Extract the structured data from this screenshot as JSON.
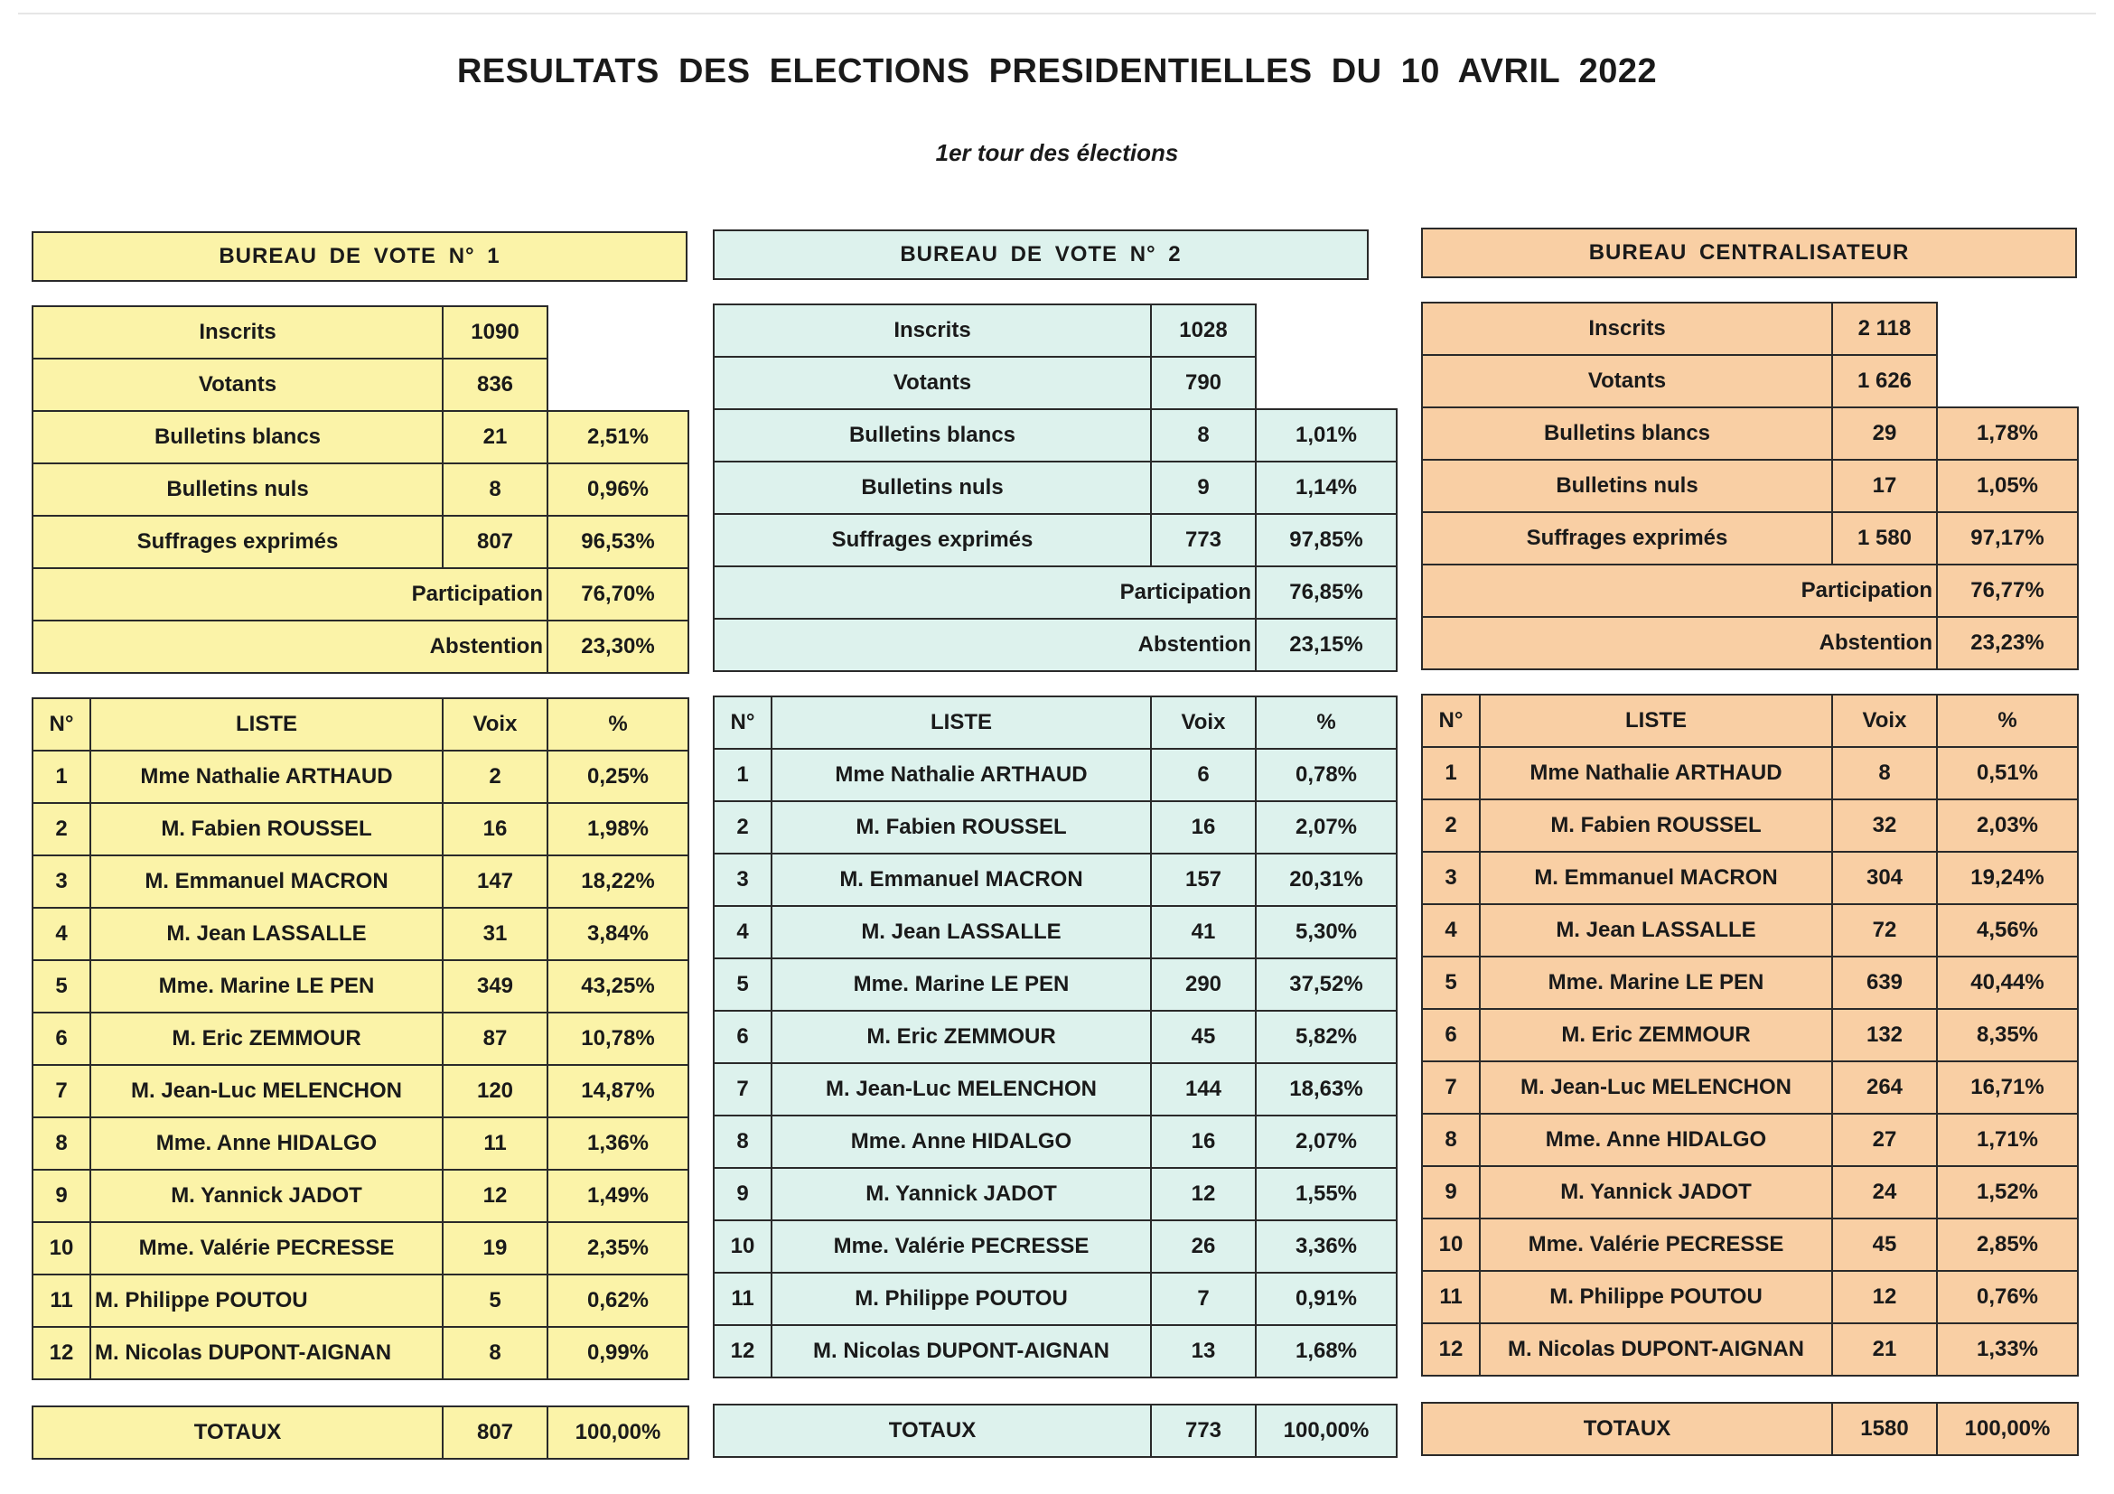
{
  "title": "RESULTATS DES ELECTIONS PRESIDENTIELLES DU 10 AVRIL 2022",
  "subtitle": "1er tour des élections",
  "labels": {
    "inscrits": "Inscrits",
    "votants": "Votants",
    "blancs": "Bulletins blancs",
    "nuls": "Bulletins nuls",
    "exprimes": "Suffrages exprimés",
    "participation": "Participation",
    "abstention": "Abstention",
    "col_num": "N°",
    "col_liste": "LISTE",
    "col_voix": "Voix",
    "col_pct": "%",
    "totaux": "TOTAUX"
  },
  "bureaux": [
    {
      "title": "BUREAU DE VOTE N° 1",
      "color": "#fbf3a8",
      "inscrits": "1090",
      "votants": "836",
      "blancs": "21",
      "blancs_pct": "2,51%",
      "nuls": "8",
      "nuls_pct": "0,96%",
      "exprimes": "807",
      "exprimes_pct": "96,53%",
      "participation": "76,70%",
      "abstention": "23,30%",
      "candidates": [
        {
          "num": "1",
          "name": "Mme Nathalie ARTHAUD",
          "voix": "2",
          "pct": "0,25%"
        },
        {
          "num": "2",
          "name": "M. Fabien ROUSSEL",
          "voix": "16",
          "pct": "1,98%"
        },
        {
          "num": "3",
          "name": "M. Emmanuel MACRON",
          "voix": "147",
          "pct": "18,22%"
        },
        {
          "num": "4",
          "name": "M. Jean LASSALLE",
          "voix": "31",
          "pct": "3,84%"
        },
        {
          "num": "5",
          "name": "Mme. Marine LE PEN",
          "voix": "349",
          "pct": "43,25%"
        },
        {
          "num": "6",
          "name": "M. Eric ZEMMOUR",
          "voix": "87",
          "pct": "10,78%"
        },
        {
          "num": "7",
          "name": "M. Jean-Luc MELENCHON",
          "voix": "120",
          "pct": "14,87%"
        },
        {
          "num": "8",
          "name": "Mme. Anne HIDALGO",
          "voix": "11",
          "pct": "1,36%"
        },
        {
          "num": "9",
          "name": "M. Yannick JADOT",
          "voix": "12",
          "pct": "1,49%"
        },
        {
          "num": "10",
          "name": "Mme. Valérie PECRESSE",
          "voix": "19",
          "pct": "2,35%"
        },
        {
          "num": "11",
          "name": "M. Philippe POUTOU",
          "voix": "5",
          "pct": "0,62%"
        },
        {
          "num": "12",
          "name": "M. Nicolas DUPONT-AIGNAN",
          "voix": "8",
          "pct": "0,99%"
        }
      ],
      "total_voix": "807",
      "total_pct": "100,00%"
    },
    {
      "title": "BUREAU DE VOTE N° 2",
      "color": "#ddf2ed",
      "inscrits": "1028",
      "votants": "790",
      "blancs": "8",
      "blancs_pct": "1,01%",
      "nuls": "9",
      "nuls_pct": "1,14%",
      "exprimes": "773",
      "exprimes_pct": "97,85%",
      "participation": "76,85%",
      "abstention": "23,15%",
      "candidates": [
        {
          "num": "1",
          "name": "Mme Nathalie ARTHAUD",
          "voix": "6",
          "pct": "0,78%"
        },
        {
          "num": "2",
          "name": "M. Fabien ROUSSEL",
          "voix": "16",
          "pct": "2,07%"
        },
        {
          "num": "3",
          "name": "M. Emmanuel MACRON",
          "voix": "157",
          "pct": "20,31%"
        },
        {
          "num": "4",
          "name": "M. Jean LASSALLE",
          "voix": "41",
          "pct": "5,30%"
        },
        {
          "num": "5",
          "name": "Mme. Marine LE PEN",
          "voix": "290",
          "pct": "37,52%"
        },
        {
          "num": "6",
          "name": "M. Eric ZEMMOUR",
          "voix": "45",
          "pct": "5,82%"
        },
        {
          "num": "7",
          "name": "M. Jean-Luc MELENCHON",
          "voix": "144",
          "pct": "18,63%"
        },
        {
          "num": "8",
          "name": "Mme. Anne HIDALGO",
          "voix": "16",
          "pct": "2,07%"
        },
        {
          "num": "9",
          "name": "M. Yannick JADOT",
          "voix": "12",
          "pct": "1,55%"
        },
        {
          "num": "10",
          "name": "Mme. Valérie PECRESSE",
          "voix": "26",
          "pct": "3,36%"
        },
        {
          "num": "11",
          "name": "M. Philippe POUTOU",
          "voix": "7",
          "pct": "0,91%"
        },
        {
          "num": "12",
          "name": "M. Nicolas DUPONT-AIGNAN",
          "voix": "13",
          "pct": "1,68%"
        }
      ],
      "total_voix": "773",
      "total_pct": "100,00%"
    },
    {
      "title": "BUREAU CENTRALISATEUR",
      "color": "#f9cfa4",
      "inscrits": "2 118",
      "votants": "1 626",
      "blancs": "29",
      "blancs_pct": "1,78%",
      "nuls": "17",
      "nuls_pct": "1,05%",
      "exprimes": "1 580",
      "exprimes_pct": "97,17%",
      "participation": "76,77%",
      "abstention": "23,23%",
      "candidates": [
        {
          "num": "1",
          "name": "Mme Nathalie ARTHAUD",
          "voix": "8",
          "pct": "0,51%"
        },
        {
          "num": "2",
          "name": "M. Fabien ROUSSEL",
          "voix": "32",
          "pct": "2,03%"
        },
        {
          "num": "3",
          "name": "M. Emmanuel MACRON",
          "voix": "304",
          "pct": "19,24%"
        },
        {
          "num": "4",
          "name": "M. Jean LASSALLE",
          "voix": "72",
          "pct": "4,56%"
        },
        {
          "num": "5",
          "name": "Mme. Marine LE PEN",
          "voix": "639",
          "pct": "40,44%"
        },
        {
          "num": "6",
          "name": "M. Eric ZEMMOUR",
          "voix": "132",
          "pct": "8,35%"
        },
        {
          "num": "7",
          "name": "M. Jean-Luc MELENCHON",
          "voix": "264",
          "pct": "16,71%"
        },
        {
          "num": "8",
          "name": "Mme. Anne HIDALGO",
          "voix": "27",
          "pct": "1,71%"
        },
        {
          "num": "9",
          "name": "M. Yannick JADOT",
          "voix": "24",
          "pct": "1,52%"
        },
        {
          "num": "10",
          "name": "Mme. Valérie PECRESSE",
          "voix": "45",
          "pct": "2,85%"
        },
        {
          "num": "11",
          "name": "M. Philippe POUTOU",
          "voix": "12",
          "pct": "0,76%"
        },
        {
          "num": "12",
          "name": "M. Nicolas DUPONT-AIGNAN",
          "voix": "21",
          "pct": "1,33%"
        }
      ],
      "total_voix": "1580",
      "total_pct": "100,00%"
    }
  ]
}
